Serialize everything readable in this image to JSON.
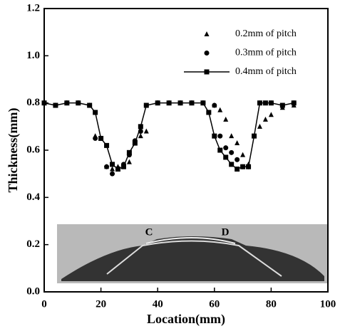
{
  "chart_data": {
    "type": "line",
    "x_label": "Location(mm)",
    "y_label": "Thickness(mm)",
    "xlim": [
      0,
      100
    ],
    "xticks": [
      0,
      20,
      40,
      60,
      80,
      100
    ],
    "ylim": [
      0,
      1.2
    ],
    "yticks": [
      {
        "value": 0,
        "label": "0.0"
      },
      0.2,
      0.4,
      0.6,
      0.8,
      {
        "value": 1,
        "label": "1.0"
      },
      1.2
    ],
    "annotations": [
      "C",
      "D"
    ],
    "series": [
      {
        "name": "0.2mm of pitch",
        "color": "#000000",
        "marker": "triangle",
        "line": false,
        "x": [
          0,
          4,
          8,
          12,
          16,
          18,
          22,
          24,
          26,
          30,
          34,
          36,
          40,
          44,
          48,
          52,
          56,
          60,
          62,
          64,
          66,
          68,
          70,
          72,
          76,
          78,
          80,
          84,
          88
        ],
        "values": [
          0.8,
          0.79,
          0.8,
          0.8,
          0.79,
          0.66,
          0.53,
          0.52,
          0.53,
          0.55,
          0.66,
          0.68,
          0.8,
          0.8,
          0.8,
          0.8,
          0.8,
          0.79,
          0.77,
          0.73,
          0.66,
          0.63,
          0.58,
          0.54,
          0.7,
          0.73,
          0.75,
          0.78,
          0.79
        ]
      },
      {
        "name": "0.3mm of pitch",
        "color": "#000000",
        "marker": "circle",
        "line": false,
        "x": [
          0,
          4,
          8,
          12,
          16,
          18,
          22,
          24,
          26,
          28,
          30,
          32,
          34,
          36,
          40,
          44,
          48,
          52,
          56,
          60,
          62,
          64,
          66,
          68,
          70,
          72,
          76,
          80,
          84,
          88
        ],
        "values": [
          0.8,
          0.79,
          0.8,
          0.8,
          0.79,
          0.65,
          0.53,
          0.5,
          0.52,
          0.54,
          0.58,
          0.64,
          0.68,
          0.79,
          0.8,
          0.8,
          0.8,
          0.8,
          0.8,
          0.79,
          0.66,
          0.61,
          0.59,
          0.56,
          0.53,
          0.53,
          0.8,
          0.8,
          0.79,
          0.8
        ]
      },
      {
        "name": "0.4mm of pitch",
        "color": "#000000",
        "marker": "square",
        "line": true,
        "x": [
          0,
          4,
          8,
          12,
          16,
          18,
          20,
          22,
          24,
          26,
          28,
          30,
          32,
          34,
          36,
          40,
          44,
          48,
          52,
          56,
          58,
          60,
          62,
          64,
          66,
          68,
          70,
          72,
          74,
          76,
          78,
          80,
          84,
          88
        ],
        "values": [
          0.8,
          0.79,
          0.8,
          0.8,
          0.79,
          0.76,
          0.65,
          0.62,
          0.54,
          0.52,
          0.53,
          0.59,
          0.63,
          0.7,
          0.79,
          0.8,
          0.8,
          0.8,
          0.8,
          0.8,
          0.76,
          0.66,
          0.6,
          0.57,
          0.54,
          0.52,
          0.53,
          0.53,
          0.66,
          0.8,
          0.8,
          0.8,
          0.79,
          0.8
        ]
      }
    ]
  }
}
